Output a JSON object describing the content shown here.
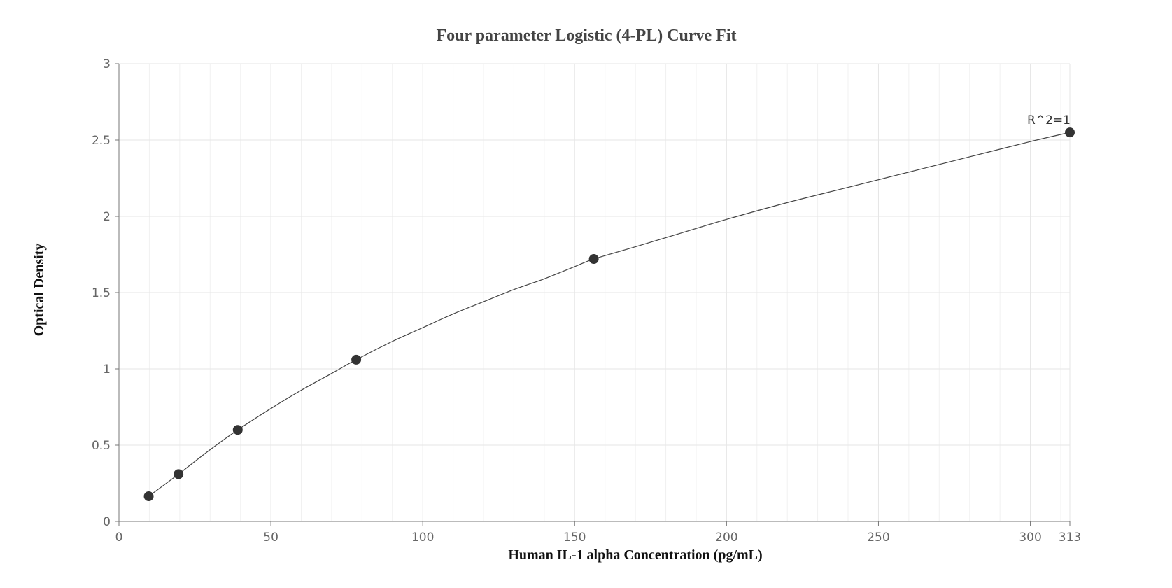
{
  "chart_data": {
    "type": "scatter",
    "title": "Four parameter Logistic (4-PL) Curve Fit",
    "xlabel": "Human IL-1 alpha Concentration (pg/mL)",
    "ylabel": "Optical Density",
    "xlim": [
      0,
      313
    ],
    "ylim": [
      0,
      3
    ],
    "x_ticks": [
      "0",
      "50",
      "100",
      "150",
      "200",
      "250",
      "300",
      "313"
    ],
    "y_ticks": [
      "0",
      "0.5",
      "1",
      "1.5",
      "2",
      "2.5",
      "3"
    ],
    "grid": true,
    "series": [
      {
        "points": [
          {
            "x": 9.8,
            "y": 0.165
          },
          {
            "x": 19.6,
            "y": 0.31
          },
          {
            "x": 39.1,
            "y": 0.6
          },
          {
            "x": 78.1,
            "y": 1.06
          },
          {
            "x": 156.3,
            "y": 1.72
          },
          {
            "x": 313,
            "y": 2.55
          }
        ]
      }
    ],
    "curve": {
      "type": "4PL fit",
      "points": [
        {
          "x": 9.8,
          "y": 0.165
        },
        {
          "x": 19.6,
          "y": 0.31
        },
        {
          "x": 30,
          "y": 0.47
        },
        {
          "x": 39.1,
          "y": 0.6
        },
        {
          "x": 50,
          "y": 0.74
        },
        {
          "x": 60,
          "y": 0.86
        },
        {
          "x": 70,
          "y": 0.97
        },
        {
          "x": 78.1,
          "y": 1.06
        },
        {
          "x": 90,
          "y": 1.18
        },
        {
          "x": 100,
          "y": 1.27
        },
        {
          "x": 110,
          "y": 1.36
        },
        {
          "x": 120,
          "y": 1.44
        },
        {
          "x": 130,
          "y": 1.52
        },
        {
          "x": 140,
          "y": 1.59
        },
        {
          "x": 150,
          "y": 1.67
        },
        {
          "x": 156.3,
          "y": 1.72
        },
        {
          "x": 170,
          "y": 1.8
        },
        {
          "x": 185,
          "y": 1.89
        },
        {
          "x": 200,
          "y": 1.98
        },
        {
          "x": 220,
          "y": 2.09
        },
        {
          "x": 240,
          "y": 2.19
        },
        {
          "x": 260,
          "y": 2.29
        },
        {
          "x": 280,
          "y": 2.39
        },
        {
          "x": 300,
          "y": 2.49
        },
        {
          "x": 313,
          "y": 2.55
        }
      ]
    },
    "annotations": [
      {
        "text": "R^2=1",
        "x": 313,
        "y": 2.55
      }
    ],
    "colors": {
      "point": "#333333",
      "curve": "#444444",
      "grid": "#e6e6e6",
      "axis": "#777777"
    }
  }
}
